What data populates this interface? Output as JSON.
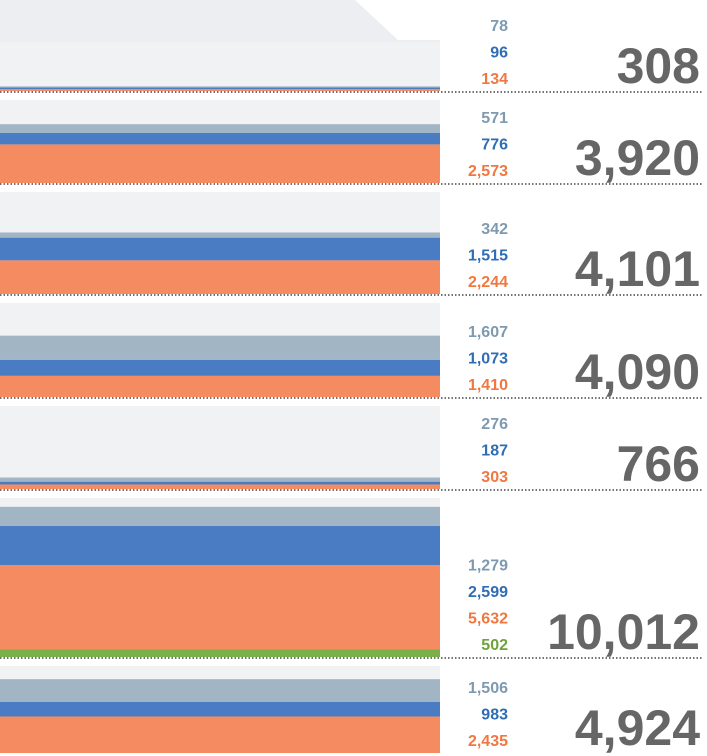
{
  "chart_data": {
    "type": "bar",
    "series": [
      {
        "color": "#a2b5c5",
        "label_color": "#7e9ab0",
        "values": [
          78,
          571,
          342,
          1607,
          276,
          1279,
          1506
        ],
        "value_labels": [
          "78",
          "571",
          "342",
          "1,607",
          "276",
          "1,279",
          "1,506"
        ]
      },
      {
        "color": "#4a7cc4",
        "label_color": "#2f6db5",
        "values": [
          96,
          776,
          1515,
          1073,
          187,
          2599,
          983
        ],
        "value_labels": [
          "96",
          "776",
          "1,515",
          "1,073",
          "187",
          "2,599",
          "983"
        ]
      },
      {
        "color": "#f58b60",
        "label_color": "#f07840",
        "values": [
          134,
          2573,
          2244,
          1410,
          303,
          5632,
          2435
        ],
        "value_labels": [
          "134",
          "2,573",
          "2,244",
          "1,410",
          "303",
          "5,632",
          "2,435"
        ]
      },
      {
        "color": "#7ab04a",
        "label_color": "#6ea33c",
        "values": [
          null,
          null,
          null,
          null,
          null,
          502,
          null
        ],
        "value_labels": [
          null,
          null,
          null,
          null,
          null,
          "502",
          null
        ]
      }
    ],
    "totals": [
      308,
      3920,
      4101,
      4090,
      766,
      10012,
      4924
    ],
    "total_labels": [
      "308",
      "3,920",
      "4,101",
      "4,090",
      "766",
      "10,012",
      "4,924"
    ]
  }
}
